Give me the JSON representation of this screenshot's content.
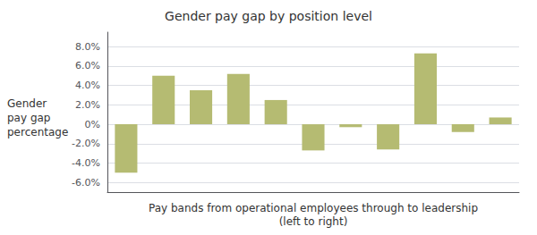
{
  "chart_data": {
    "type": "bar",
    "title": "Gender pay gap by position level",
    "ylabel": "Gender\npay gap\npercentage",
    "xlabel": "Pay bands from operational employees through to leadership\n(left to right)",
    "categories": [
      null,
      null,
      null,
      null,
      null,
      null,
      null,
      null,
      null,
      null,
      null
    ],
    "values": [
      -5.0,
      5.0,
      3.5,
      5.2,
      2.5,
      -2.7,
      -0.3,
      -2.6,
      7.3,
      -0.8,
      0.7
    ],
    "color": "#b5bb72",
    "ylim": [
      -7.0,
      9.5
    ],
    "yticks": [
      {
        "value": -6.0,
        "label": "-6.0%"
      },
      {
        "value": -4.0,
        "label": "-4.0%"
      },
      {
        "value": -2.0,
        "label": "-2.0%"
      },
      {
        "value": 0.0,
        "label": "0%"
      },
      {
        "value": 2.0,
        "label": "2.0%"
      },
      {
        "value": 4.0,
        "label": "4.0%"
      },
      {
        "value": 6.0,
        "label": "6.0%"
      },
      {
        "value": 8.0,
        "label": "8.0%"
      }
    ],
    "grid": true,
    "tick_labels": "y"
  }
}
